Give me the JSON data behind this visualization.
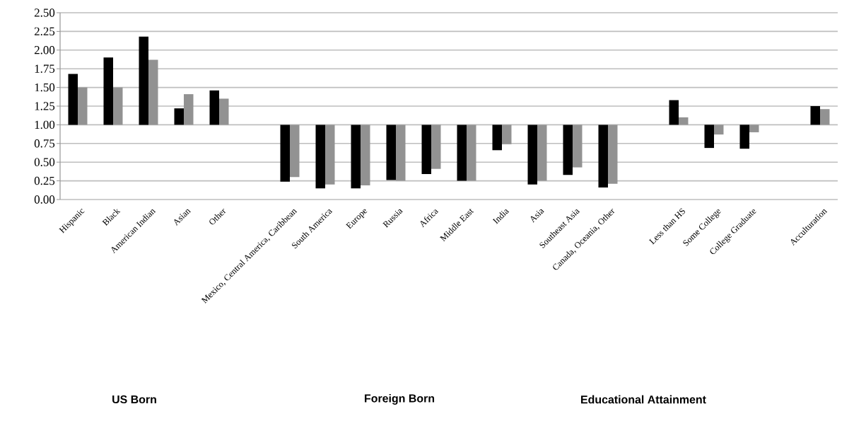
{
  "chart_data": {
    "type": "bar",
    "categories": [
      "Hispanic",
      "Black",
      "American Indian",
      "Asian",
      "Other",
      null,
      "Mexico, Central America, Caribbean",
      "South America",
      "Europe",
      "Russia",
      "Africa",
      "Middle East",
      "India",
      "Asia",
      "Southeast Asia",
      "Canada, Oceania, Other",
      null,
      "Less than HS",
      "Some College",
      "College Graduate",
      null,
      "Acculturation"
    ],
    "series": [
      {
        "color": "#000000",
        "base": [
          1,
          1,
          1,
          1,
          1,
          null,
          1,
          1,
          1,
          1,
          1,
          1,
          1,
          1,
          1,
          1,
          null,
          1,
          1,
          1,
          null,
          1
        ],
        "values": [
          0.68,
          0.9,
          1.18,
          0.22,
          0.46,
          null,
          -0.76,
          -0.85,
          -0.85,
          -0.74,
          -0.66,
          -0.75,
          -0.34,
          -0.8,
          -0.67,
          -0.84,
          null,
          0.33,
          -0.31,
          -0.32,
          null,
          0.25
        ]
      },
      {
        "color": "#929292",
        "base": [
          1,
          1,
          1,
          1,
          1,
          null,
          1,
          1,
          1,
          1,
          1,
          1,
          1,
          1,
          1,
          1,
          null,
          1,
          1,
          1,
          null,
          1
        ],
        "values": [
          0.5,
          0.5,
          0.87,
          0.41,
          0.35,
          null,
          -0.7,
          -0.8,
          -0.81,
          -0.75,
          -0.59,
          -0.75,
          -0.26,
          -0.75,
          -0.57,
          -0.79,
          null,
          0.1,
          -0.13,
          -0.1,
          null,
          0.21
        ]
      }
    ],
    "ylim": [
      0,
      2.5
    ],
    "yticks": [
      {
        "value": 0,
        "label": "0.00"
      },
      {
        "value": 0.25,
        "label": "0.25"
      },
      {
        "value": 0.5,
        "label": "0.50"
      },
      {
        "value": 0.75,
        "label": "0.75"
      },
      {
        "value": 1,
        "label": "1.00"
      },
      {
        "value": 1.25,
        "label": "1.25"
      },
      {
        "value": 1.5,
        "label": "1.50"
      },
      {
        "value": 1.75,
        "label": "1.75"
      },
      {
        "value": 2,
        "label": "2.00"
      },
      {
        "value": 2.25,
        "label": "2.25"
      },
      {
        "value": 2.5,
        "label": "2.50"
      }
    ],
    "grid": "y",
    "annotations": [
      "US Born",
      "Foreign Born",
      "Educational Attainment"
    ]
  }
}
